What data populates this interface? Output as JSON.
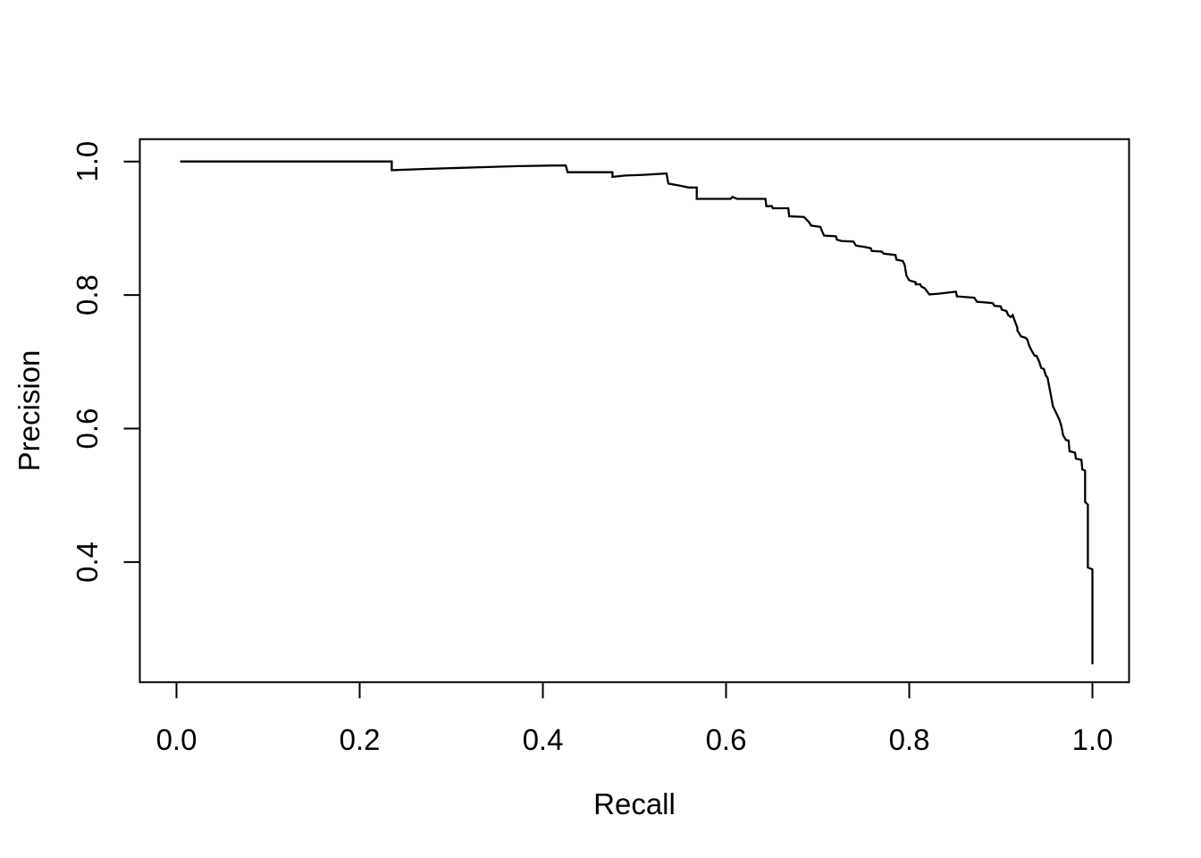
{
  "page": {
    "background": "#ffffff"
  },
  "chart_data": {
    "type": "line",
    "title": "",
    "xlabel": "Recall",
    "ylabel": "Precision",
    "x_ticks": [
      0.0,
      0.2,
      0.4,
      0.6,
      0.8,
      1.0
    ],
    "x_tick_labels": [
      "0.0",
      "0.2",
      "0.4",
      "0.6",
      "0.8",
      "1.0"
    ],
    "y_ticks": [
      0.4,
      0.6,
      0.8,
      1.0
    ],
    "y_tick_labels": [
      "0.4",
      "0.6",
      "0.8",
      "1.0"
    ],
    "xlim": [
      -0.04,
      1.04
    ],
    "ylim": [
      0.22,
      1.034
    ],
    "grid": false,
    "legend": null,
    "line_color": "#000000",
    "axis_color": "#000000",
    "background": "#ffffff",
    "series": [
      {
        "points": [
          [
            0.004,
            1.0
          ],
          [
            0.235,
            1.0
          ],
          [
            0.235,
            0.987
          ],
          [
            0.276,
            0.989
          ],
          [
            0.324,
            0.991
          ],
          [
            0.373,
            0.993
          ],
          [
            0.412,
            0.994
          ],
          [
            0.425,
            0.994
          ],
          [
            0.427,
            0.984
          ],
          [
            0.476,
            0.984
          ],
          [
            0.476,
            0.977
          ],
          [
            0.49,
            0.979
          ],
          [
            0.51,
            0.98
          ],
          [
            0.535,
            0.982
          ],
          [
            0.537,
            0.967
          ],
          [
            0.549,
            0.964
          ],
          [
            0.559,
            0.961
          ],
          [
            0.568,
            0.961
          ],
          [
            0.568,
            0.944
          ],
          [
            0.605,
            0.944
          ],
          [
            0.607,
            0.947
          ],
          [
            0.612,
            0.944
          ],
          [
            0.643,
            0.944
          ],
          [
            0.644,
            0.933
          ],
          [
            0.65,
            0.933
          ],
          [
            0.651,
            0.93
          ],
          [
            0.668,
            0.93
          ],
          [
            0.669,
            0.918
          ],
          [
            0.685,
            0.917
          ],
          [
            0.69,
            0.91
          ],
          [
            0.693,
            0.904
          ],
          [
            0.703,
            0.902
          ],
          [
            0.705,
            0.895
          ],
          [
            0.707,
            0.889
          ],
          [
            0.72,
            0.888
          ],
          [
            0.721,
            0.883
          ],
          [
            0.726,
            0.881
          ],
          [
            0.739,
            0.88
          ],
          [
            0.742,
            0.874
          ],
          [
            0.751,
            0.872
          ],
          [
            0.758,
            0.87
          ],
          [
            0.759,
            0.866
          ],
          [
            0.77,
            0.865
          ],
          [
            0.772,
            0.862
          ],
          [
            0.785,
            0.86
          ],
          [
            0.786,
            0.853
          ],
          [
            0.793,
            0.851
          ],
          [
            0.795,
            0.845
          ],
          [
            0.796,
            0.837
          ],
          [
            0.797,
            0.829
          ],
          [
            0.8,
            0.822
          ],
          [
            0.807,
            0.819
          ],
          [
            0.807,
            0.816
          ],
          [
            0.812,
            0.816
          ],
          [
            0.813,
            0.813
          ],
          [
            0.817,
            0.81
          ],
          [
            0.822,
            0.801
          ],
          [
            0.832,
            0.802
          ],
          [
            0.851,
            0.805
          ],
          [
            0.852,
            0.798
          ],
          [
            0.871,
            0.796
          ],
          [
            0.874,
            0.79
          ],
          [
            0.891,
            0.788
          ],
          [
            0.893,
            0.784
          ],
          [
            0.9,
            0.783
          ],
          [
            0.901,
            0.778
          ],
          [
            0.906,
            0.776
          ],
          [
            0.908,
            0.77
          ],
          [
            0.911,
            0.767
          ],
          [
            0.913,
            0.77
          ],
          [
            0.915,
            0.762
          ],
          [
            0.918,
            0.751
          ],
          [
            0.918,
            0.747
          ],
          [
            0.922,
            0.738
          ],
          [
            0.927,
            0.736
          ],
          [
            0.929,
            0.733
          ],
          [
            0.931,
            0.724
          ],
          [
            0.934,
            0.716
          ],
          [
            0.937,
            0.709
          ],
          [
            0.939,
            0.709
          ],
          [
            0.942,
            0.7
          ],
          [
            0.944,
            0.691
          ],
          [
            0.947,
            0.689
          ],
          [
            0.949,
            0.68
          ],
          [
            0.951,
            0.676
          ],
          [
            0.956,
            0.64
          ],
          [
            0.957,
            0.633
          ],
          [
            0.961,
            0.622
          ],
          [
            0.964,
            0.613
          ],
          [
            0.966,
            0.604
          ],
          [
            0.968,
            0.59
          ],
          [
            0.971,
            0.583
          ],
          [
            0.974,
            0.582
          ],
          [
            0.975,
            0.566
          ],
          [
            0.981,
            0.564
          ],
          [
            0.982,
            0.555
          ],
          [
            0.988,
            0.553
          ],
          [
            0.989,
            0.539
          ],
          [
            0.992,
            0.537
          ],
          [
            0.992,
            0.49
          ],
          [
            0.995,
            0.486
          ],
          [
            0.995,
            0.392
          ],
          [
            1.0,
            0.389
          ],
          [
            1.0,
            0.247
          ]
        ]
      }
    ]
  }
}
